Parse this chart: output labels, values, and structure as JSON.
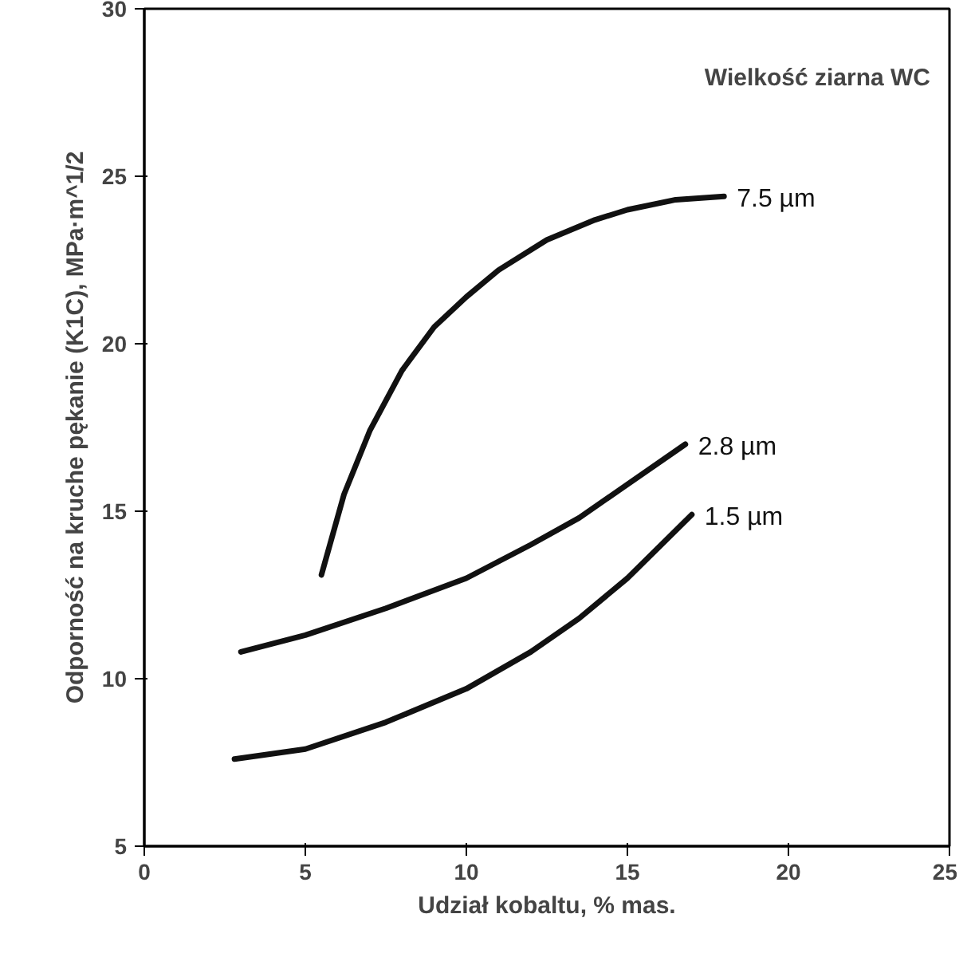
{
  "chart_data": {
    "type": "line",
    "xlabel": "Udział kobaltu, % mas.",
    "ylabel": "Odporność na kruche pękanie (K1C), MPa·m^1/2",
    "xlim": [
      0,
      25
    ],
    "ylim": [
      5,
      30
    ],
    "xticks": [
      0,
      5,
      10,
      15,
      20,
      25
    ],
    "yticks": [
      5,
      10,
      15,
      20,
      25,
      30
    ],
    "grid": false,
    "marker": "none",
    "line_style": "solid",
    "series": [
      {
        "name": "7.5 µm",
        "color": "#111111",
        "x": [
          5.5,
          6.2,
          7,
          8,
          9,
          10,
          11,
          12.5,
          14,
          15,
          16.5,
          18
        ],
        "values": [
          13.1,
          15.5,
          17.4,
          19.2,
          20.5,
          21.4,
          22.2,
          23.1,
          23.7,
          24,
          24.3,
          24.4
        ]
      },
      {
        "name": "2.8 µm",
        "color": "#111111",
        "x": [
          3,
          5,
          7.5,
          10,
          12,
          13.5,
          15,
          16.8
        ],
        "values": [
          10.8,
          11.3,
          12.1,
          13,
          14,
          14.8,
          15.8,
          17
        ]
      },
      {
        "name": "1.5 µm",
        "color": "#111111",
        "x": [
          2.8,
          5,
          7.5,
          10,
          12,
          13.5,
          15,
          17
        ],
        "values": [
          7.6,
          7.9,
          8.7,
          9.7,
          10.8,
          11.8,
          13,
          14.9
        ]
      }
    ],
    "annotations": [
      "Wielkość ziarna WC"
    ]
  }
}
